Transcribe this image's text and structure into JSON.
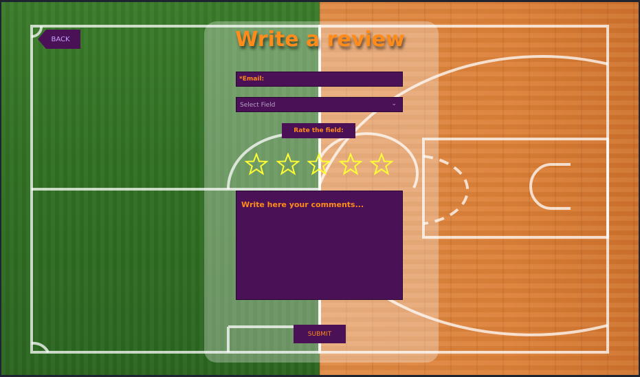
{
  "nav": {
    "back_label": "BACK",
    "back_icon": "back-arrow-icon"
  },
  "form": {
    "title": "Write a review",
    "email_label": "*Email:",
    "email_value": "",
    "select_value": "Select Field",
    "select_icon": "chevron-down-icon",
    "rate_label": "Rate the field:",
    "rating": {
      "value": 0,
      "max": 5,
      "icon": "star-icon"
    },
    "comments_placeholder": "Write here your comments...",
    "submit_label": "SUBMIT"
  },
  "colors": {
    "accent": "#ff8c1a",
    "field_bg": "#4a1157",
    "star": "#ffff33",
    "back_text": "#c9a2ff",
    "grass": "#2f6e22",
    "wood": "#dc8038"
  }
}
